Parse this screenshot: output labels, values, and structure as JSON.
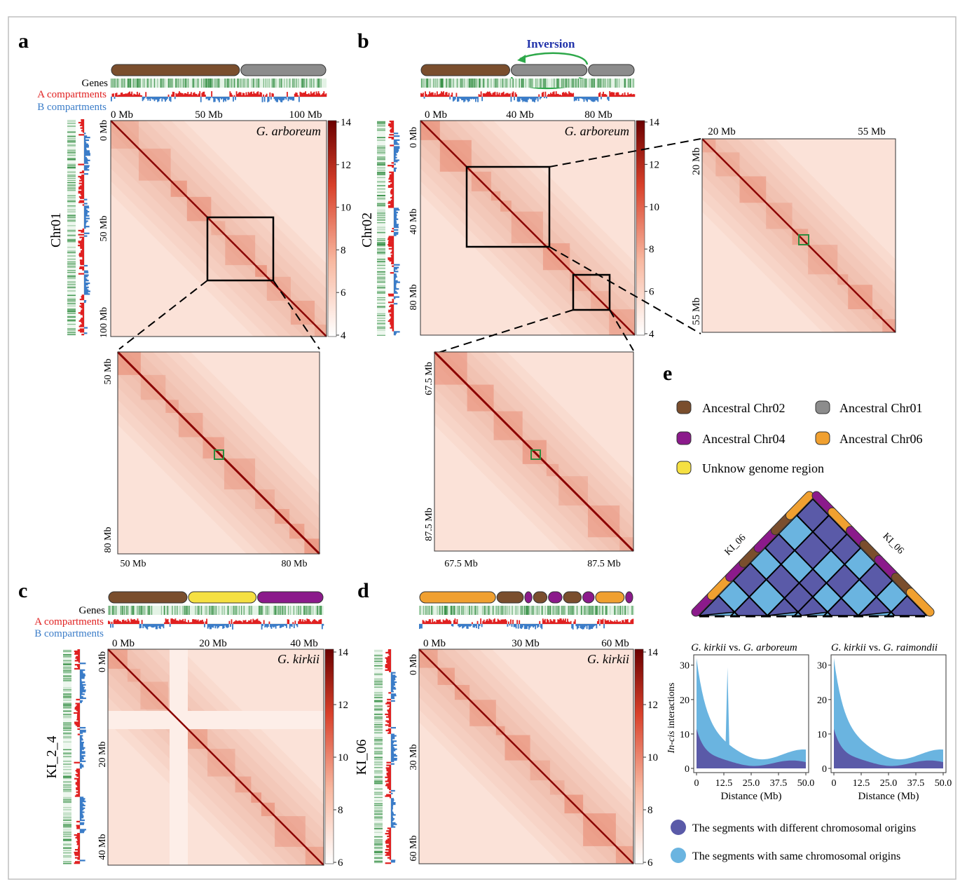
{
  "panels": {
    "a": {
      "letter": "a",
      "species": "G. arboreum",
      "chrom": "Chr01",
      "track_labels": [
        "Genes",
        "A compartments",
        "B compartments"
      ],
      "x_ticks": [
        "0 Mb",
        "50 Mb",
        "100 Mb"
      ],
      "y_ticks": [
        "0 Mb",
        "50 Mb",
        "100 Mb"
      ],
      "cbar_ticks": [
        "14",
        "12",
        "10",
        "8",
        "6",
        "4"
      ],
      "bar_segments": [
        "brown",
        "gray"
      ],
      "zoom_x_ticks": [
        "50 Mb",
        "80 Mb"
      ],
      "zoom_y_ticks": [
        "50 Mb",
        "80 Mb"
      ]
    },
    "b": {
      "letter": "b",
      "species": "G. arboreum",
      "chrom": "Chr02",
      "inversion_label": "Inversion",
      "x_ticks": [
        "0 Mb",
        "40 Mb",
        "80 Mb"
      ],
      "y_ticks": [
        "0 Mb",
        "40 Mb",
        "80 Mb"
      ],
      "cbar_ticks": [
        "14",
        "12",
        "10",
        "8",
        "6",
        "4"
      ],
      "bar_segments": [
        "brown",
        "gray",
        "gray"
      ],
      "zoom1_x_ticks": [
        "20 Mb",
        "55 Mb"
      ],
      "zoom1_y_ticks": [
        "20 Mb",
        "55 Mb"
      ],
      "zoom2_x_ticks": [
        "67.5 Mb",
        "87.5 Mb"
      ],
      "zoom2_y_ticks": [
        "67.5 Mb",
        "87.5 Mb"
      ]
    },
    "c": {
      "letter": "c",
      "species": "G. kirkii",
      "chrom": "KI_2_4",
      "track_labels": [
        "Genes",
        "A compartments",
        "B compartments"
      ],
      "x_ticks": [
        "0 Mb",
        "20 Mb",
        "40 Mb"
      ],
      "y_ticks": [
        "0 Mb",
        "20 Mb",
        "40 Mb"
      ],
      "cbar_ticks": [
        "14",
        "12",
        "10",
        "8",
        "6"
      ],
      "bar_segments": [
        "brown",
        "yellow",
        "purple"
      ]
    },
    "d": {
      "letter": "d",
      "species": "G. kirkii",
      "chrom": "KI_06",
      "x_ticks": [
        "0 Mb",
        "30 Mb",
        "60 Mb"
      ],
      "y_ticks": [
        "0 Mb",
        "30 Mb",
        "60 Mb"
      ],
      "cbar_ticks": [
        "14",
        "12",
        "10",
        "8",
        "6"
      ],
      "bar_segments": [
        "orange",
        "brown",
        "purple",
        "brown",
        "purple",
        "brown",
        "purple",
        "orange",
        "purple"
      ]
    },
    "e": {
      "letter": "e",
      "legend": [
        {
          "label": "Ancestral Chr02",
          "color": "#7a4e2d"
        },
        {
          "label": "Ancestral Chr01",
          "color": "#8c8c8c"
        },
        {
          "label": "Ancestral Chr04",
          "color": "#8b1a8b"
        },
        {
          "label": "Ancestral Chr06",
          "color": "#f0a030"
        },
        {
          "label": "Unknow genome region",
          "color": "#f5e042"
        }
      ],
      "triangle_labels": [
        "KI_06",
        "KI_06"
      ],
      "plot1_title_a": "G. kirkii",
      "plot1_title_b": " vs. ",
      "plot1_title_c": "G. arboreum",
      "plot2_title_a": "G. kirkii",
      "plot2_title_b": " vs. ",
      "plot2_title_c": "G. raimondii",
      "ylabel_italic": "In-cis",
      "ylabel_rest": " interactions",
      "xlabel": "Distance (Mb)",
      "y_ticks": [
        "30",
        "20",
        "10",
        "0"
      ],
      "x_ticks": [
        "0",
        "12.5",
        "25.0",
        "37.5",
        "50.0"
      ],
      "bottom_legend": [
        {
          "label": "The segments with different chromosomal origins",
          "color": "#5a5aa8"
        },
        {
          "label": "The segments with same chromosomal origins",
          "color": "#6ab4e0"
        }
      ]
    }
  },
  "colors": {
    "brown": "#7a4e2d",
    "gray": "#8c8c8c",
    "purple": "#8b1a8b",
    "orange": "#f0a030",
    "yellow": "#f5e042",
    "a_comp": "#e02020",
    "b_comp": "#3a7cc8",
    "genes": "#2e8b3e",
    "heat_dark": "#8b0000",
    "heat_light": "#fde8e0",
    "inversion": "#2233aa",
    "arrow": "#2ea84a"
  }
}
